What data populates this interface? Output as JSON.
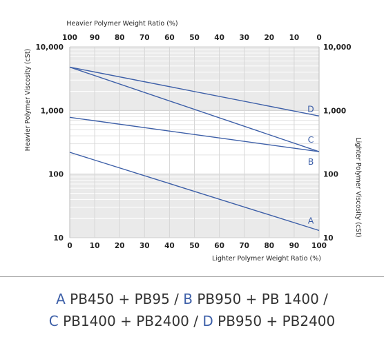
{
  "chart_data": {
    "type": "line",
    "x_bottom": {
      "label": "Lighter Polymer Weight Ratio (%)",
      "ticks": [
        0,
        10,
        20,
        30,
        40,
        50,
        60,
        70,
        80,
        90,
        100
      ],
      "range": [
        0,
        100
      ]
    },
    "x_top": {
      "label": "Heavier Polymer Weight Ratio (%)",
      "ticks": [
        100,
        90,
        80,
        70,
        60,
        50,
        40,
        30,
        20,
        10,
        0
      ]
    },
    "y_left": {
      "label": "Heavier Polymer Viscosity (cSt)",
      "scale": "log",
      "range": [
        10,
        10000
      ],
      "ticks": [
        "10",
        "100",
        "1,000",
        "10,000"
      ]
    },
    "y_right": {
      "label": "Lighter Polymer Viscosity (cSt)",
      "ticks": [
        "10",
        "100",
        "1,000",
        "10,000"
      ]
    },
    "grid": true,
    "series": [
      {
        "name": "A",
        "x": [
          0,
          100
        ],
        "y": [
          220,
          13
        ]
      },
      {
        "name": "B",
        "x": [
          0,
          100
        ],
        "y": [
          780,
          225
        ]
      },
      {
        "name": "C",
        "x": [
          0,
          100
        ],
        "y": [
          4800,
          225
        ]
      },
      {
        "name": "D",
        "x": [
          0,
          100
        ],
        "y": [
          4800,
          820
        ]
      }
    ]
  },
  "caption": {
    "line1": [
      {
        "letter": "A",
        "text": " PB450 + PB95 / "
      },
      {
        "letter": "B",
        "text": " PB950 + PB 1400 /"
      }
    ],
    "line2": [
      {
        "letter": "C",
        "text": " PB1400 + PB2400 / "
      },
      {
        "letter": "D",
        "text": " PB950 + PB2400"
      }
    ]
  },
  "colors": {
    "series": "#3d5fa8",
    "band_gray": "#eaeaea",
    "grid": "#ffffff"
  }
}
